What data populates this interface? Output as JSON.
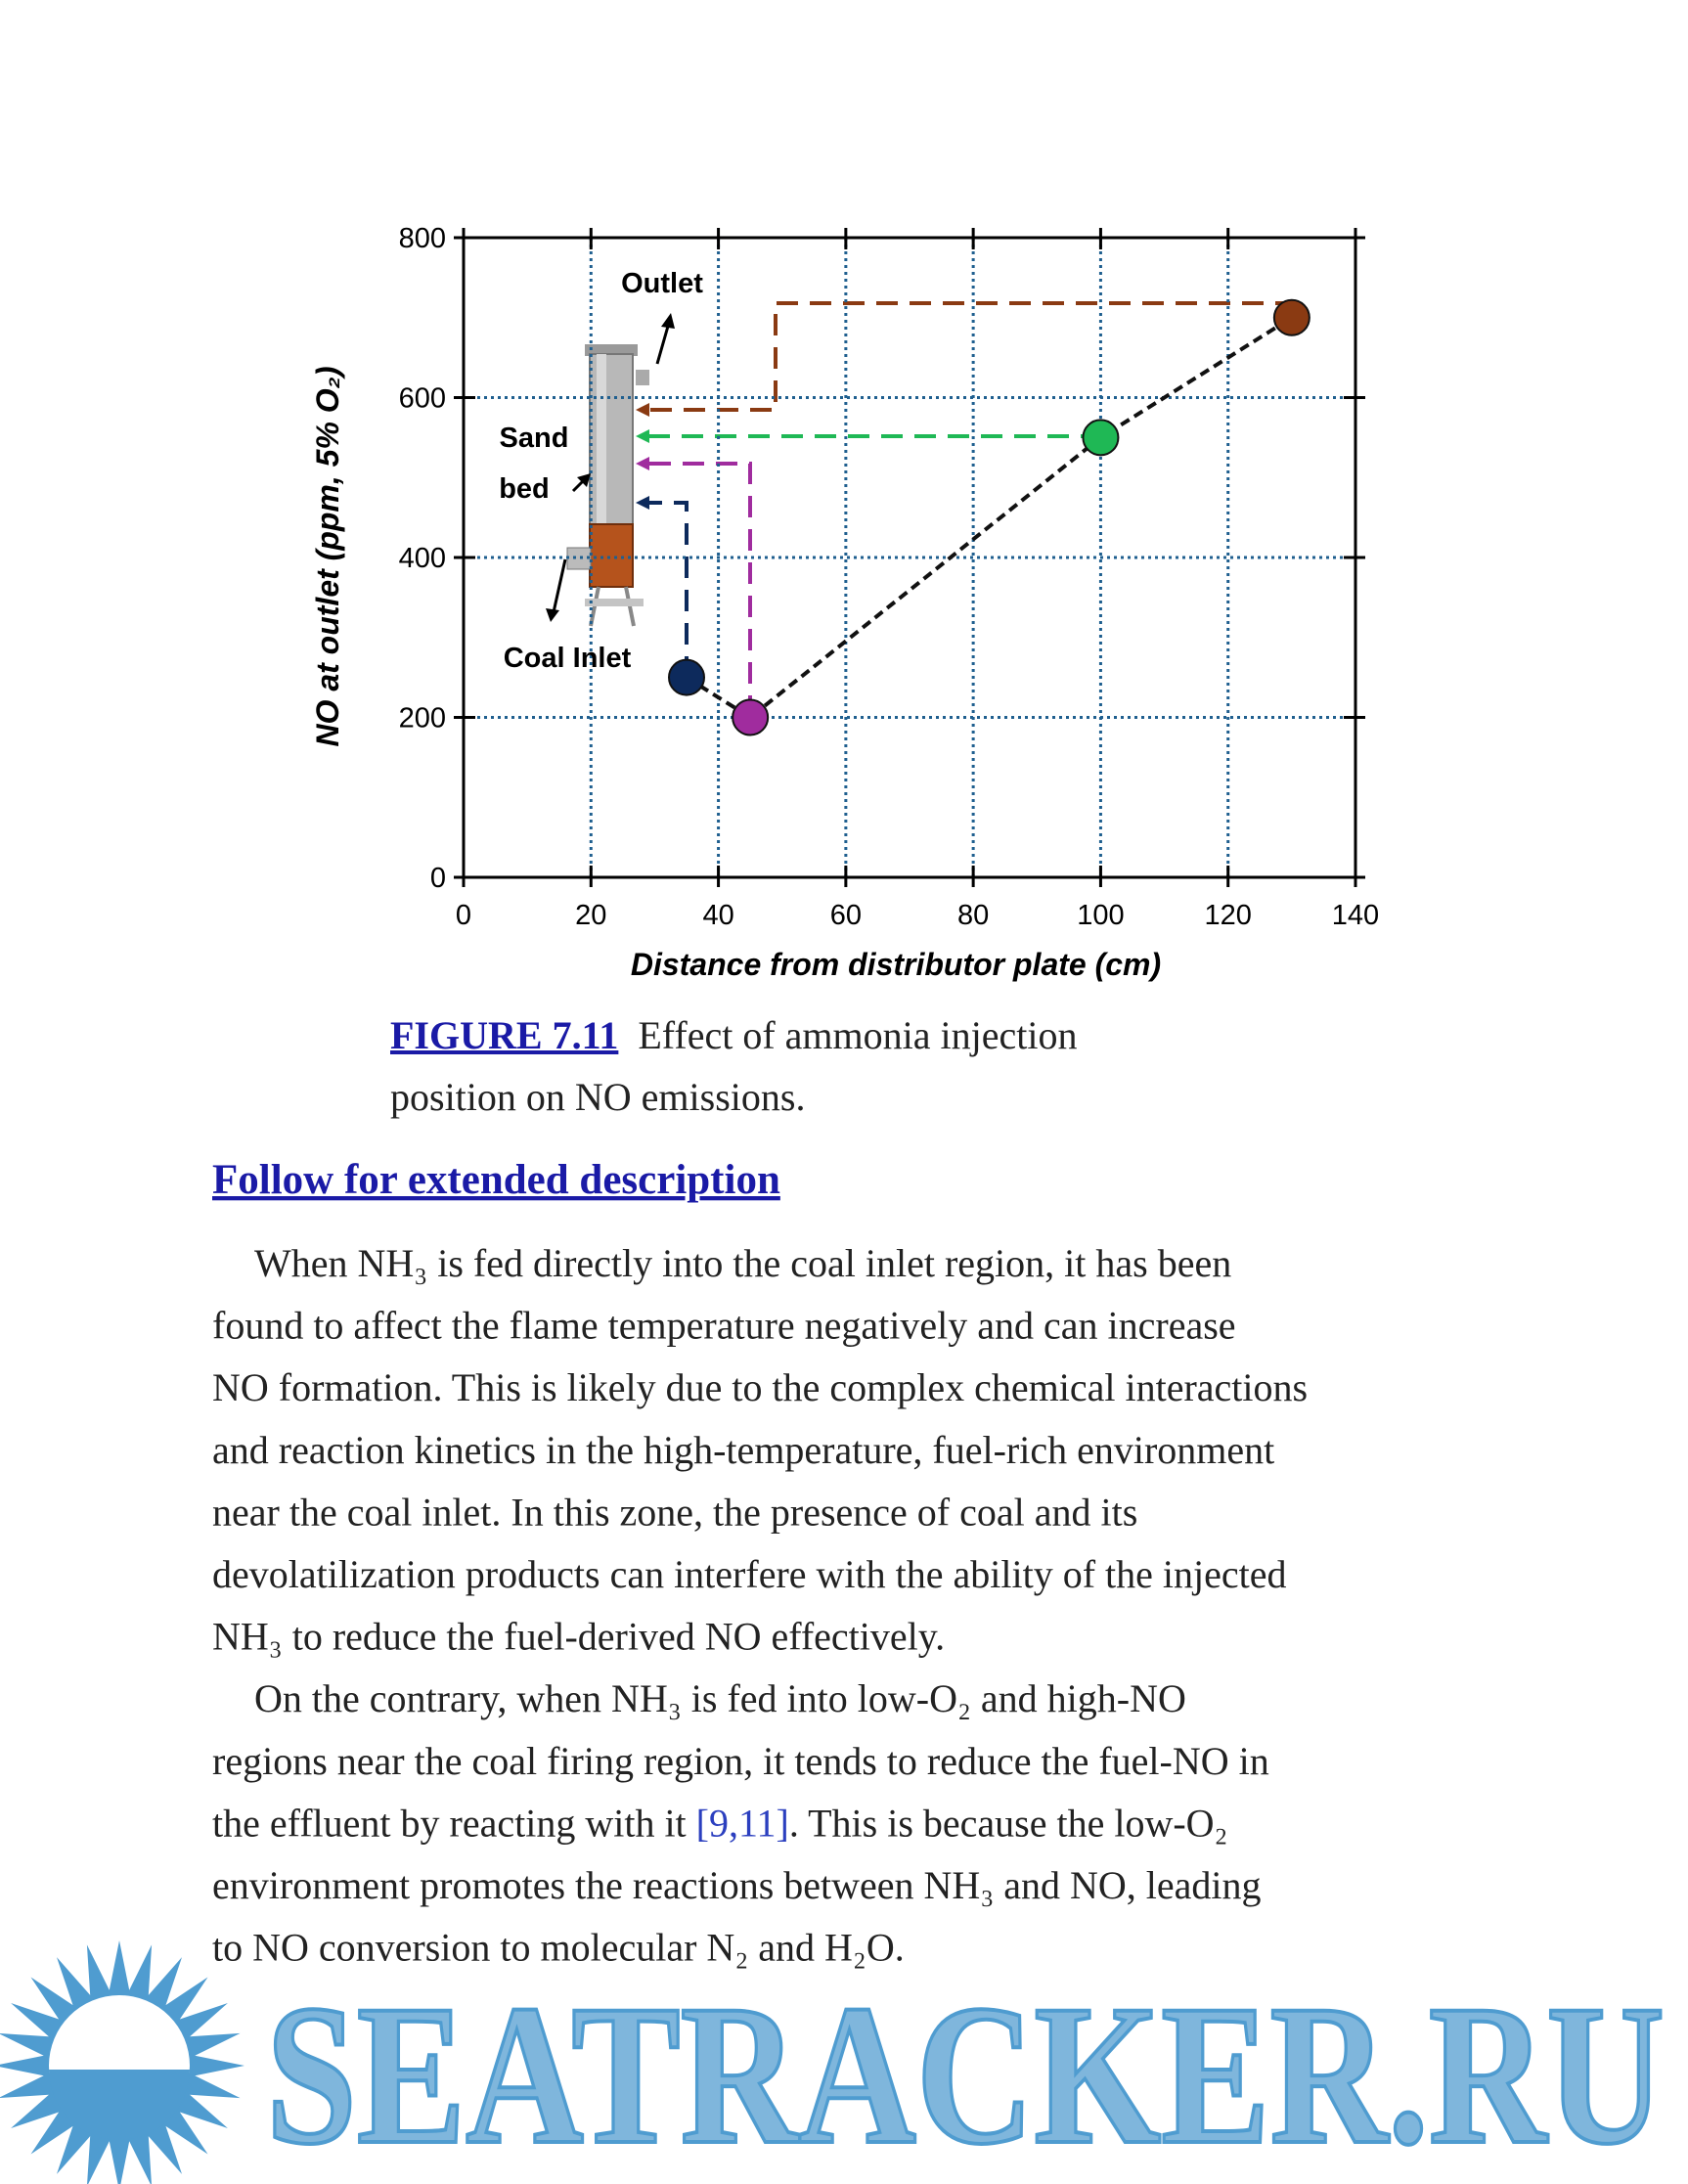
{
  "chart_data": {
    "type": "line",
    "xlabel": "Distance from distributor plate (cm)",
    "ylabel": "NO at outlet (ppm, 5% O₂)",
    "x": [
      35,
      45,
      100,
      130
    ],
    "values": [
      250,
      200,
      550,
      700
    ],
    "point_colors": [
      "#0d2a5c",
      "#a02c9e",
      "#1fb855",
      "#8a3a12"
    ],
    "line_color": "#111111",
    "xlim": [
      0,
      140
    ],
    "xticks": [
      0,
      20,
      40,
      60,
      80,
      100,
      120,
      140
    ],
    "ylim": [
      0,
      800
    ],
    "yticks": [
      0,
      200,
      400,
      600,
      800
    ],
    "grid": true,
    "grid_color": "#1f5f8f",
    "annotations": [
      "Outlet",
      "Sand",
      "bed",
      "Coal Inlet"
    ]
  },
  "caption": {
    "label": "FIGURE 7.11",
    "lines": [
      "Effect of ammonia injection",
      "position on NO emissions."
    ]
  },
  "link": "Follow for extended description",
  "paragraphs": [
    {
      "lines": [
        "When NH₃ is fed directly into the coal inlet region, it has been",
        "found to affect the flame temperature negatively and can increase",
        "NO formation. This is likely due to the complex chemical interactions",
        "and reaction kinetics in the high-temperature, fuel-rich environment",
        "near the coal inlet. In this zone, the presence of coal and its",
        "devolatilization products can interfere with the ability of the injected",
        "NH₃ to reduce the fuel-derived NO effectively."
      ]
    },
    {
      "lines": [
        "On the contrary, when NH₃ is fed into low-O₂ and high-NO",
        "regions near the coal firing region, it tends to reduce the fuel-NO in",
        {
          "before": "the effluent by reacting with it ",
          "citation": "[9,11]",
          "after": ". This is because the low-O₂"
        },
        "environment promotes the reactions between NH₃ and NO, leading",
        "to NO conversion to molecular N₂ and H₂O."
      ]
    }
  ],
  "watermark": "SEATRACKER.RU"
}
